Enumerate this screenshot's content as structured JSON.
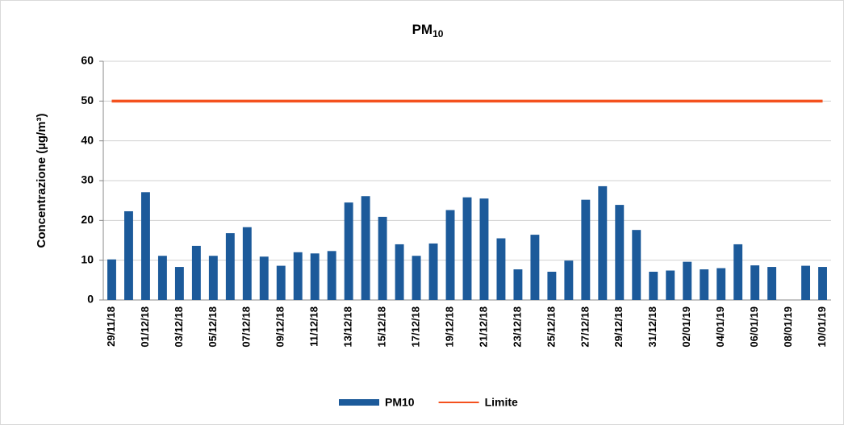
{
  "chart_data": {
    "type": "bar",
    "title": "PM",
    "title_subscript": "10",
    "y_label": "Concentrazione  (µg/m³)",
    "categories": [
      "29/11/18",
      null,
      "01/12/18",
      null,
      "03/12/18",
      null,
      "05/12/18",
      null,
      "07/12/18",
      null,
      "09/12/18",
      null,
      "11/12/18",
      null,
      "13/12/18",
      null,
      "15/12/18",
      null,
      "17/12/18",
      null,
      "19/12/18",
      null,
      "21/12/18",
      null,
      "23/12/18",
      null,
      "25/12/18",
      null,
      "27/12/18",
      null,
      "29/12/18",
      null,
      "31/12/18",
      null,
      "02/01/19",
      null,
      "04/01/19",
      null,
      "06/01/19",
      null,
      "08/01/19",
      null,
      "10/01/19"
    ],
    "series": [
      {
        "name": "PM10",
        "type": "bar",
        "color": "#1c5a9a",
        "values": [
          10.2,
          22.3,
          27.1,
          11.1,
          8.3,
          13.6,
          11.1,
          16.8,
          18.3,
          10.9,
          8.6,
          12.0,
          11.7,
          12.3,
          24.5,
          26.1,
          20.9,
          14.0,
          11.1,
          14.2,
          22.6,
          25.8,
          25.5,
          15.5,
          7.7,
          16.4,
          7.1,
          9.9,
          25.2,
          28.6,
          23.9,
          17.6,
          7.1,
          7.4,
          9.6,
          7.7,
          8.0,
          14.0,
          8.7,
          8.3,
          null,
          8.6,
          8.3
        ]
      },
      {
        "name": "Limite",
        "type": "line",
        "color": "#f4511e",
        "values": [
          50,
          50,
          50,
          50,
          50,
          50,
          50,
          50,
          50,
          50,
          50,
          50,
          50,
          50,
          50,
          50,
          50,
          50,
          50,
          50,
          50,
          50,
          50,
          50,
          50,
          50,
          50,
          50,
          50,
          50,
          50,
          50,
          50,
          50,
          50,
          50,
          50,
          50,
          50,
          50,
          50,
          50,
          50
        ]
      }
    ],
    "ylim": [
      0,
      60
    ],
    "yticks": [
      0,
      10,
      20,
      30,
      40,
      50,
      60
    ],
    "grid": true,
    "legend": "bottom"
  }
}
